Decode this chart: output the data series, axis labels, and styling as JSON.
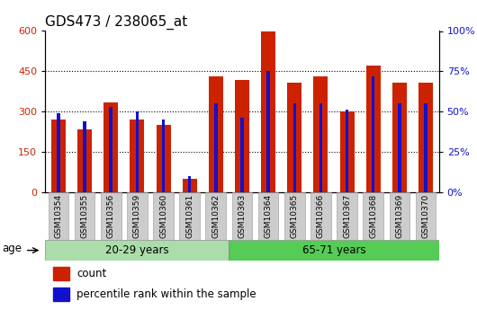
{
  "title": "GDS473 / 238065_at",
  "categories": [
    "GSM10354",
    "GSM10355",
    "GSM10356",
    "GSM10359",
    "GSM10360",
    "GSM10361",
    "GSM10362",
    "GSM10363",
    "GSM10364",
    "GSM10365",
    "GSM10366",
    "GSM10367",
    "GSM10368",
    "GSM10369",
    "GSM10370"
  ],
  "count_values": [
    270,
    235,
    335,
    270,
    252,
    50,
    430,
    418,
    600,
    408,
    430,
    300,
    470,
    408,
    408
  ],
  "percentile_values": [
    49,
    44,
    53,
    50,
    45,
    10,
    55,
    46,
    75,
    55,
    55,
    51,
    72,
    55,
    55
  ],
  "group_labels": [
    "20-29 years",
    "65-71 years"
  ],
  "left_ylim": [
    0,
    600
  ],
  "left_yticks": [
    0,
    150,
    300,
    450,
    600
  ],
  "right_ylim": [
    0,
    100
  ],
  "right_yticks": [
    0,
    25,
    50,
    75,
    100
  ],
  "bar_color_count": "#cc2200",
  "bar_color_percentile": "#1111cc",
  "group1_color": "#aaddaa",
  "group2_color": "#55cc55",
  "legend_count_label": "count",
  "legend_percentile_label": "percentile rank within the sample",
  "age_label": "age",
  "title_fontsize": 11,
  "dotted_lines": [
    150,
    300,
    450
  ]
}
